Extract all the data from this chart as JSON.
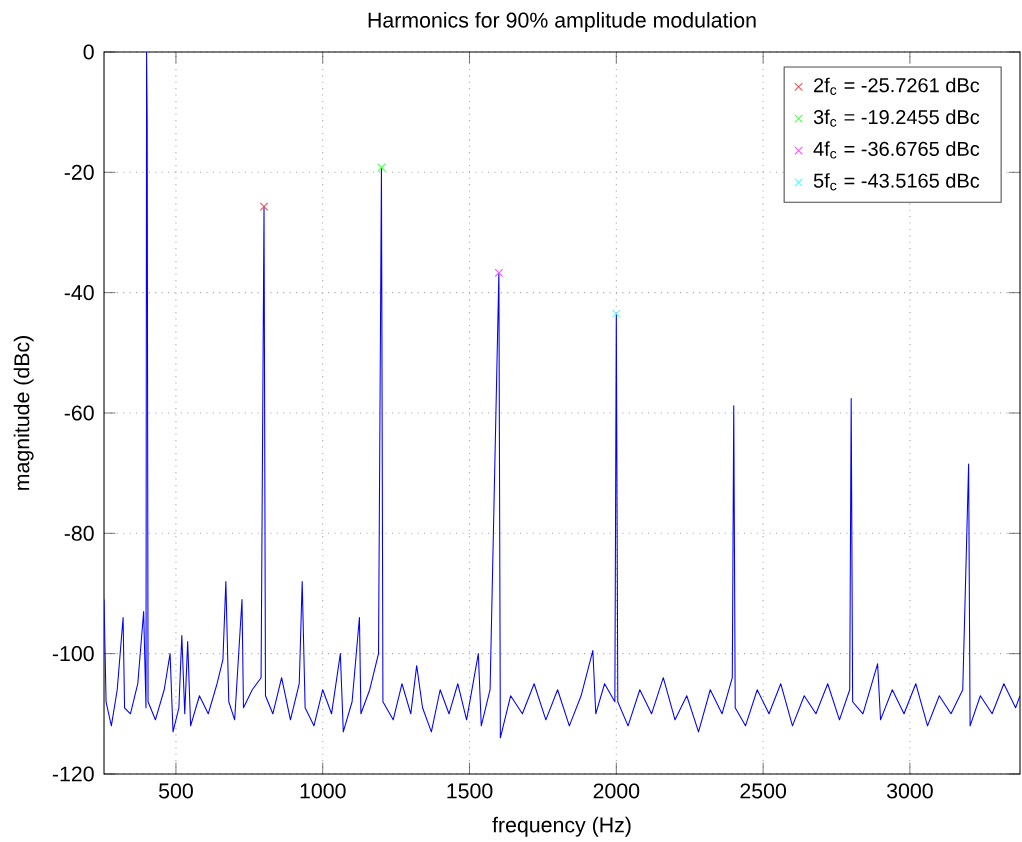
{
  "chart_data": {
    "type": "line",
    "title": "Harmonics for 90% amplitude modulation",
    "xlabel": "frequency (Hz)",
    "ylabel": "magnitude (dBc)",
    "xlim": [
      255,
      3375
    ],
    "ylim": [
      -120,
      0
    ],
    "xticks": [
      500,
      1000,
      1500,
      2000,
      2500,
      3000
    ],
    "yticks": [
      -120,
      -100,
      -80,
      -60,
      -40,
      -20,
      0
    ],
    "grid": true,
    "legend": "top right",
    "series": [
      {
        "color": "#0000ff",
        "x": [
          255,
          262,
          280,
          300,
          320,
          325,
          345,
          370,
          390,
          398,
          400,
          402,
          405,
          430,
          460,
          480,
          490,
          510,
          520,
          530,
          540,
          550,
          580,
          610,
          640,
          660,
          670,
          680,
          700,
          725,
          730,
          760,
          790,
          800,
          805,
          830,
          860,
          890,
          920,
          930,
          940,
          970,
          1000,
          1030,
          1060,
          1070,
          1100,
          1125,
          1130,
          1160,
          1190,
          1200,
          1205,
          1240,
          1270,
          1300,
          1320,
          1340,
          1370,
          1400,
          1430,
          1460,
          1490,
          1530,
          1540,
          1570,
          1600,
          1605,
          1640,
          1680,
          1720,
          1760,
          1800,
          1840,
          1880,
          1920,
          1930,
          1960,
          1995,
          2000,
          2005,
          2040,
          2080,
          2120,
          2160,
          2200,
          2240,
          2280,
          2320,
          2360,
          2395,
          2400,
          2405,
          2440,
          2480,
          2520,
          2560,
          2600,
          2640,
          2680,
          2720,
          2760,
          2795,
          2800,
          2805,
          2840,
          2890,
          2900,
          2940,
          2980,
          3020,
          3060,
          3100,
          3140,
          3180,
          3200,
          3205,
          3240,
          3280,
          3320,
          3360,
          3375
        ],
        "values": [
          -91,
          -108,
          -112,
          -106,
          -94,
          -109,
          -110,
          -105,
          -93,
          -109,
          0,
          -11.5,
          -108,
          -111,
          -106,
          -100,
          -113,
          -109,
          -97,
          -110,
          -98,
          -112,
          -107,
          -110,
          -105,
          -101,
          -88,
          -108,
          -111,
          -91,
          -109,
          -106,
          -104,
          -25.7,
          -107,
          -110,
          -104,
          -111,
          -105,
          -88,
          -109,
          -112,
          -106,
          -110,
          -100,
          -113,
          -108,
          -94,
          -110,
          -106,
          -100,
          -19.2,
          -108,
          -111,
          -105,
          -110,
          -102,
          -109,
          -113,
          -106,
          -110,
          -105,
          -111,
          -100,
          -112,
          -106,
          -36.7,
          -114,
          -107,
          -110,
          -105,
          -111,
          -106,
          -112,
          -107,
          -99.5,
          -110,
          -105,
          -108,
          -43.5,
          -108,
          -112,
          -106,
          -110,
          -104,
          -111,
          -107,
          -113,
          -106,
          -110,
          -104,
          -58.8,
          -109,
          -112,
          -106,
          -110,
          -105,
          -112,
          -107,
          -110,
          -105,
          -111,
          -106,
          -57.6,
          -108,
          -110,
          -101.7,
          -111,
          -106,
          -110,
          -105,
          -112,
          -107,
          -110,
          -106,
          -68.5,
          -112,
          -107,
          -110,
          -105,
          -109,
          -107
        ]
      },
      {
        "type": "scatter",
        "name": "2f$_{c}$ = -25.7261 dBc",
        "color": "#ff5050",
        "marker": "cross",
        "x": [
          800
        ],
        "values": [
          -25.7
        ]
      },
      {
        "type": "scatter",
        "name": "3f$_{c}$ = -19.2455 dBc",
        "color": "#50ff50",
        "marker": "cross",
        "x": [
          1200
        ],
        "values": [
          -19.2
        ]
      },
      {
        "type": "scatter",
        "name": "4f$_{c}$ = -36.6765 dBc",
        "color": "#ff50ff",
        "marker": "cross",
        "x": [
          1600
        ],
        "values": [
          -36.7
        ]
      },
      {
        "type": "scatter",
        "name": "5f$_{c}$ = -43.5165 dBc",
        "color": "#50ffff",
        "marker": "cross",
        "x": [
          2000
        ],
        "values": [
          -43.5
        ]
      }
    ]
  }
}
